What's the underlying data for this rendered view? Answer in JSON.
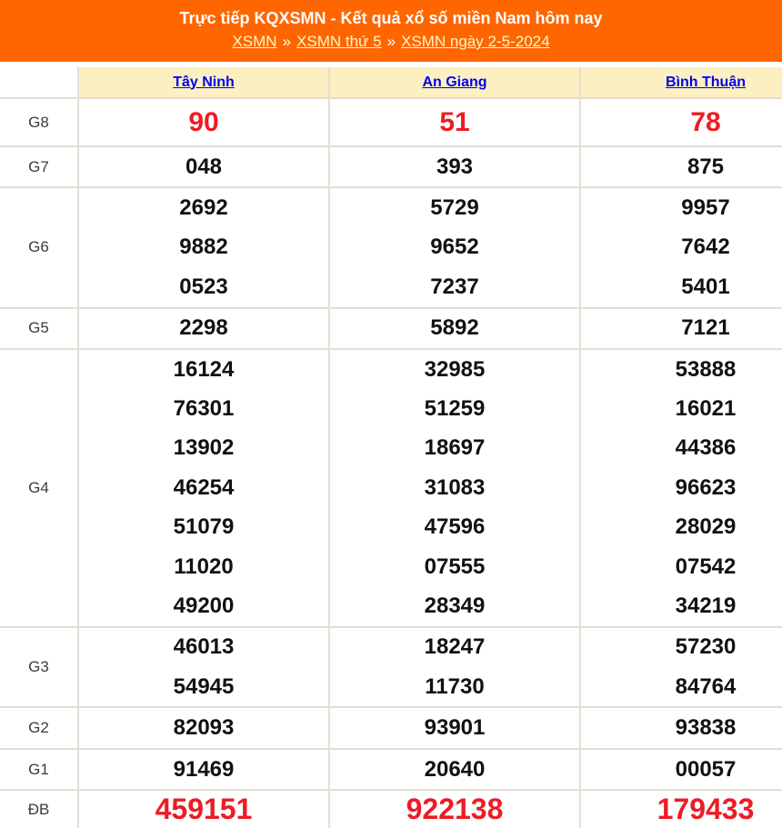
{
  "header": {
    "title": "Trực tiếp KQXSMN - Kết quả xổ số miền Nam hôm nay",
    "breadcrumb": {
      "separator": "»",
      "links": [
        "XSMN",
        "XSMN thứ 5",
        "XSMN ngày 2-5-2024"
      ]
    }
  },
  "colors": {
    "banner_orange": "#FF6600",
    "highlight_red": "#ED1C24",
    "province_link_blue": "#0000EE",
    "breadcrumb_link": "#FFF8C6",
    "table_header_bg": "#FCF0C2",
    "table_border": "#E3DFD4"
  },
  "table": {
    "provinces": [
      "Tây Ninh",
      "An Giang",
      "Bình Thuận"
    ],
    "rows": [
      {
        "id": "g8",
        "label": "G8",
        "style": "g8",
        "values": [
          [
            "90"
          ],
          [
            "51"
          ],
          [
            "78"
          ]
        ]
      },
      {
        "id": "g7",
        "label": "G7",
        "style": "",
        "values": [
          [
            "048"
          ],
          [
            "393"
          ],
          [
            "875"
          ]
        ]
      },
      {
        "id": "g6",
        "label": "G6",
        "style": "",
        "values": [
          [
            "2692",
            "9882",
            "0523"
          ],
          [
            "5729",
            "9652",
            "7237"
          ],
          [
            "9957",
            "7642",
            "5401"
          ]
        ]
      },
      {
        "id": "g5",
        "label": "G5",
        "style": "",
        "values": [
          [
            "2298"
          ],
          [
            "5892"
          ],
          [
            "7121"
          ]
        ]
      },
      {
        "id": "g4",
        "label": "G4",
        "style": "",
        "values": [
          [
            "16124",
            "76301",
            "13902",
            "46254",
            "51079",
            "11020",
            "49200"
          ],
          [
            "32985",
            "51259",
            "18697",
            "31083",
            "47596",
            "07555",
            "28349"
          ],
          [
            "53888",
            "16021",
            "44386",
            "96623",
            "28029",
            "07542",
            "34219"
          ]
        ]
      },
      {
        "id": "g3",
        "label": "G3",
        "style": "",
        "values": [
          [
            "46013",
            "54945"
          ],
          [
            "18247",
            "11730"
          ],
          [
            "57230",
            "84764"
          ]
        ]
      },
      {
        "id": "g2",
        "label": "G2",
        "style": "",
        "values": [
          [
            "82093"
          ],
          [
            "93901"
          ],
          [
            "93838"
          ]
        ]
      },
      {
        "id": "g1",
        "label": "G1",
        "style": "",
        "values": [
          [
            "91469"
          ],
          [
            "20640"
          ],
          [
            "00057"
          ]
        ]
      },
      {
        "id": "db",
        "label": "ĐB",
        "style": "db",
        "values": [
          [
            "459151"
          ],
          [
            "922138"
          ],
          [
            "179433"
          ]
        ]
      }
    ]
  }
}
